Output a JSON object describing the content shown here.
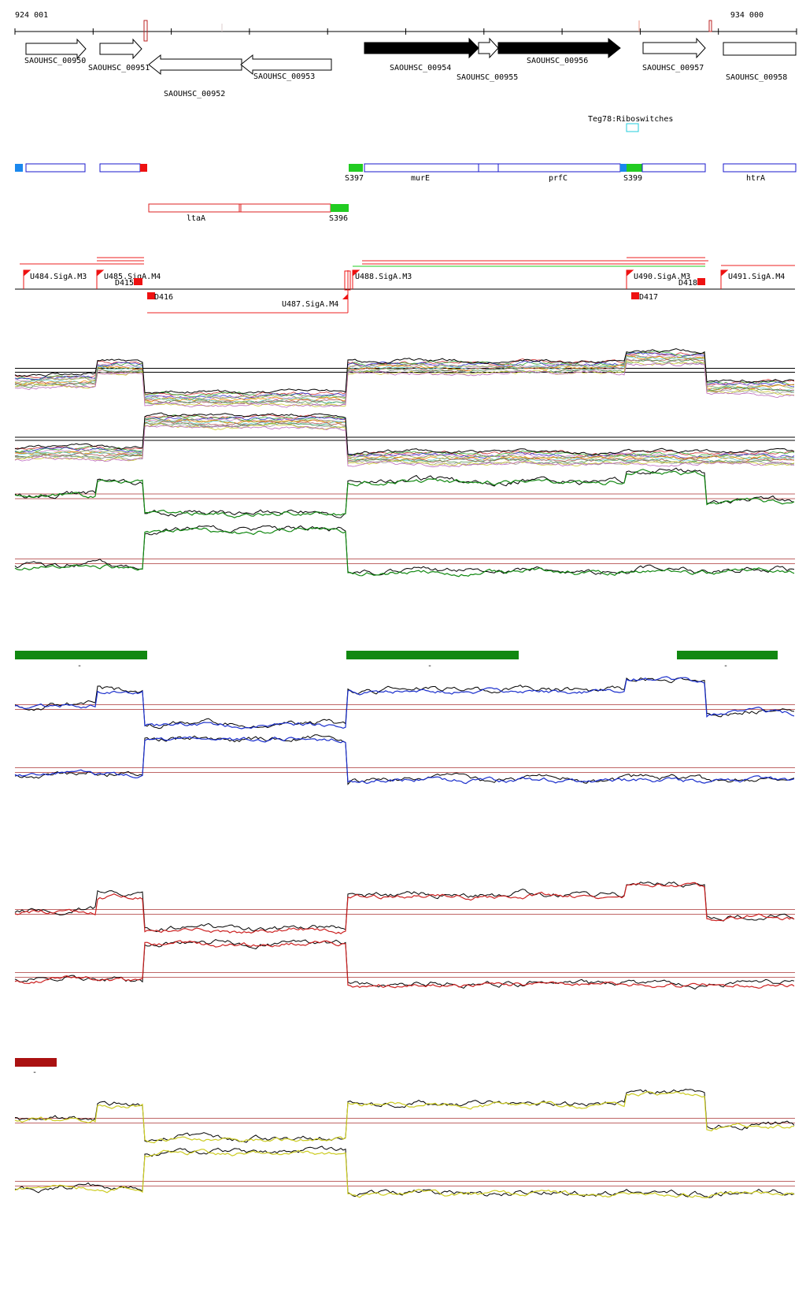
{
  "coords": {
    "start": "924 001",
    "end": "934 000"
  },
  "genes": [
    {
      "id": "SAOUHSC_00950",
      "strand": "+",
      "filled": false
    },
    {
      "id": "SAOUHSC_00951",
      "strand": "+",
      "filled": false
    },
    {
      "id": "SAOUHSC_00952",
      "strand": "-",
      "filled": false
    },
    {
      "id": "SAOUHSC_00953",
      "strand": "-",
      "filled": false
    },
    {
      "id": "SAOUHSC_00954",
      "strand": "+",
      "filled": true
    },
    {
      "id": "SAOUHSC_00955",
      "strand": "+",
      "filled": false
    },
    {
      "id": "SAOUHSC_00956",
      "strand": "+",
      "filled": true
    },
    {
      "id": "SAOUHSC_00957",
      "strand": "+",
      "filled": false
    },
    {
      "id": "SAOUHSC_00958",
      "strand": "+",
      "filled": false
    }
  ],
  "riboswitch": {
    "label": "Teg78:Riboswitches",
    "color": "#22ccdd"
  },
  "features_plus": [
    {
      "label": "S397",
      "color": "#22cc22"
    },
    {
      "label": "murE",
      "color": "#1a1acc"
    },
    {
      "label": "prfC",
      "color": "#1a1acc"
    },
    {
      "label": "S399",
      "color": "#22cc22"
    },
    {
      "label": "htrA",
      "color": "#1a1acc"
    }
  ],
  "features_minus": [
    {
      "label": "ltaA",
      "color": "#dd2222"
    },
    {
      "label": "S396",
      "color": "#22cc22"
    }
  ],
  "promoters": [
    {
      "label": "U484.SigA.M3"
    },
    {
      "label": "U485.SigA.M4"
    },
    {
      "label": "D415"
    },
    {
      "label": "D416"
    },
    {
      "label": "U487.SigA.M4"
    },
    {
      "label": "U488.SigA.M3"
    },
    {
      "label": "U490.SigA.M3"
    },
    {
      "label": "D418"
    },
    {
      "label": "D417"
    },
    {
      "label": "U491.SigA.M4"
    }
  ],
  "condition_bars": [
    {
      "color": "#118811",
      "label": "-"
    },
    {
      "color": "#118811",
      "label": "-"
    },
    {
      "color": "#118811",
      "label": "-"
    },
    {
      "color": "#aa1111",
      "label": "-"
    }
  ],
  "track_colors": {
    "green": "#118811",
    "blue": "#1a2ecc",
    "red": "#cc2222",
    "yellow": "#cccc22",
    "black": "#000000",
    "threshold": "#aa3333"
  }
}
